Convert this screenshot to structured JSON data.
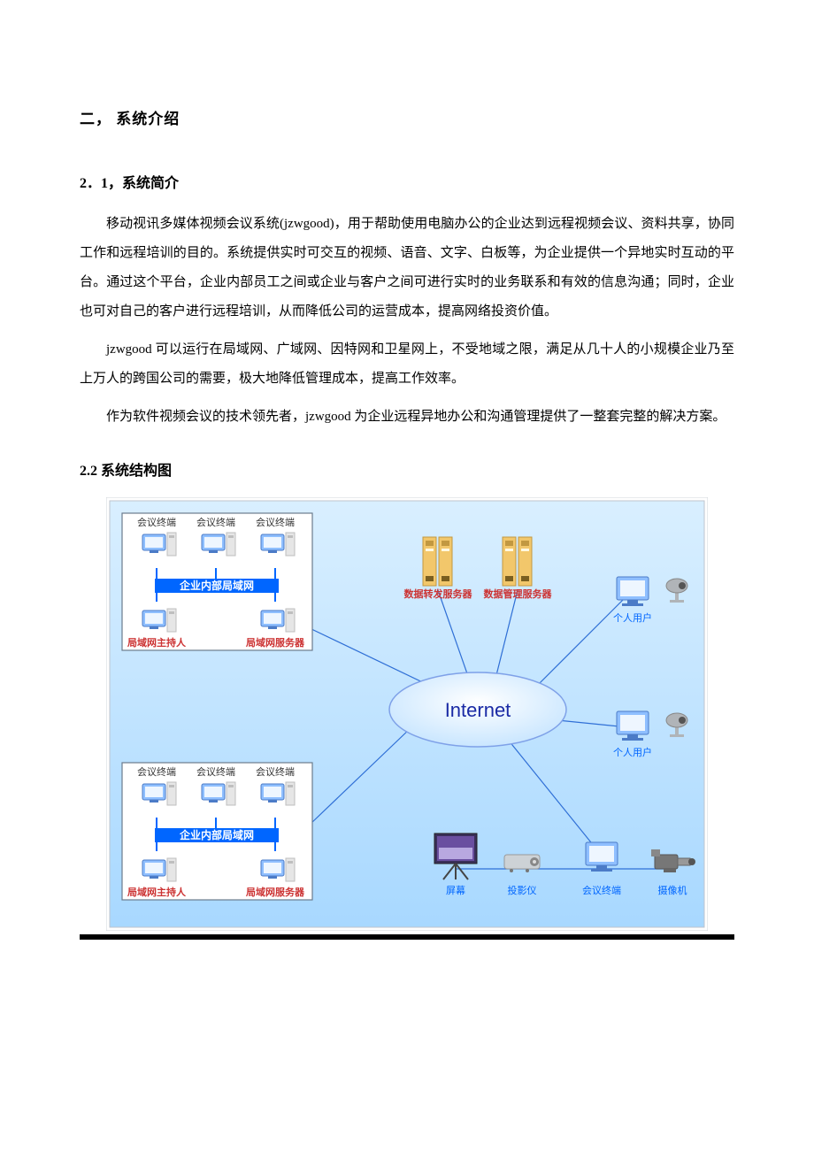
{
  "headings": {
    "section": "二，  系统介绍",
    "sub1": "2．1，系统简介",
    "sub2": "2.2 系统结构图"
  },
  "paragraphs": {
    "p1": "移动视讯多媒体视频会议系统(jzwgood)，用于帮助使用电脑办公的企业达到远程视频会议、资料共享，协同工作和远程培训的目的。系统提供实时可交互的视频、语音、文字、白板等，为企业提供一个异地实时互动的平台。通过这个平台，企业内部员工之间或企业与客户之间可进行实时的业务联系和有效的信息沟通；同时，企业也可对自己的客户进行远程培训，从而降低公司的运营成本，提高网络投资价值。",
    "p2": "jzwgood 可以运行在局域网、广域网、因特网和卫星网上，不受地域之限，满足从几十人的小规模企业乃至上万人的跨国公司的需要，极大地降低管理成本，提高工作效率。",
    "p3": "作为软件视频会议的技术领先者，jzwgood 为企业远程异地办公和沟通管理提供了一整套完整的解决方案。"
  },
  "diagram": {
    "type": "network",
    "background_start": "#d9efff",
    "background_end": "#a8d8ff",
    "border_color": "#cfd4da",
    "inner_border": "#bfc4cc",
    "lan_box_bg": "#ffffff",
    "lan_box_border": "#6b7b8c",
    "lan_band_color": "#0066ff",
    "lan_band_text_color": "#ffffff",
    "internet_text": "Internet",
    "internet_fill": "#c9e6ff",
    "internet_stroke": "#7fa1e8",
    "internet_fontsize": 22,
    "internet_font_family": "Arial",
    "internet_text_color": "#1a2aa5",
    "line_color": "#2f6fd6",
    "server_color": "#f2c76b",
    "server_dark": "#c29840",
    "monitor_color": "#8fbfff",
    "monitor_dark": "#4b7bc7",
    "tower_color": "#e6e6e6",
    "tower_dark": "#bfbfbf",
    "camera_color": "#b0b4b8",
    "projector_color": "#cdd2d6",
    "label_red": "#cc3333",
    "label_blue": "#0066ff",
    "nodes": {
      "lan_box_label_terminal": "会议终端",
      "lan_band_text": "企业内部局域网",
      "lan_host_label": "局域网主持人",
      "lan_server_label": "局域网服务器",
      "forward_server": "数据转发服务器",
      "mgmt_server": "数据管理服务器",
      "personal_user": "个人用户",
      "screen": "屏幕",
      "projector": "投影仪",
      "conf_terminal": "会议终端",
      "camcorder": "摄像机"
    }
  }
}
